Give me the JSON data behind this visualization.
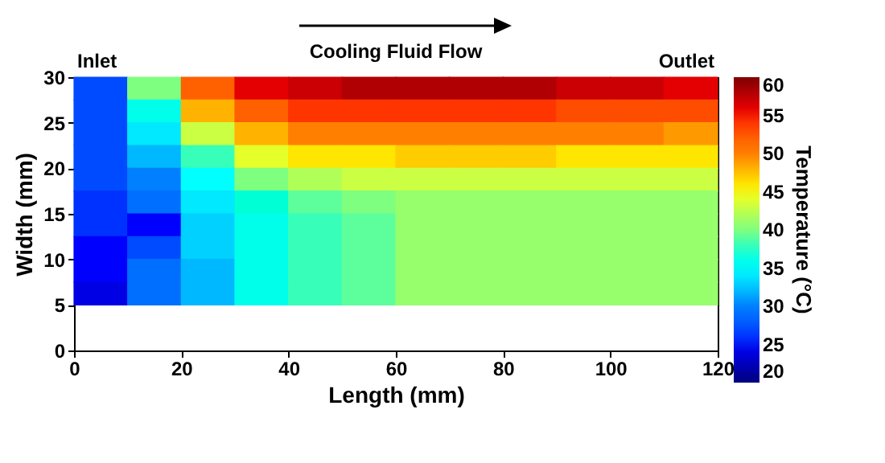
{
  "chart_data": {
    "type": "scatter",
    "marker": "square",
    "xlabel": "Length (mm)",
    "ylabel": "Width (mm)",
    "clabel": "Temperature (°C)",
    "annotations": [
      "Inlet",
      "Cooling Fluid Flow",
      "Outlet"
    ],
    "xlim": [
      0,
      120
    ],
    "ylim": [
      0,
      30
    ],
    "xticks": [
      0,
      20,
      40,
      60,
      80,
      100,
      120
    ],
    "yticks": [
      0,
      5,
      10,
      15,
      20,
      25,
      30
    ],
    "clim": [
      20,
      60
    ],
    "cticks": [
      20,
      25,
      30,
      35,
      40,
      45,
      50,
      55,
      60
    ],
    "x": [
      5,
      15,
      25,
      35,
      45,
      55,
      65,
      75,
      85,
      95,
      105,
      115,
      5,
      15,
      25,
      35,
      45,
      55,
      65,
      75,
      85,
      95,
      105,
      115,
      5,
      15,
      25,
      35,
      45,
      55,
      65,
      75,
      85,
      95,
      105,
      115,
      5,
      15,
      25,
      35,
      45,
      55,
      65,
      75,
      85,
      95,
      105,
      115,
      5,
      15,
      25,
      35,
      45,
      55,
      65,
      75,
      85,
      95,
      105,
      115,
      5,
      15,
      25,
      35,
      45,
      55,
      65,
      75,
      85,
      95,
      105,
      115,
      5,
      15,
      25,
      35,
      45,
      55,
      65,
      75,
      85,
      95,
      105,
      115,
      5,
      15,
      25,
      35,
      45,
      55,
      65,
      75,
      85,
      95,
      105,
      115,
      5,
      15,
      25,
      35,
      45,
      55,
      65,
      75,
      85,
      95,
      105,
      115,
      5,
      15,
      25,
      35,
      45,
      55,
      65,
      75,
      85,
      95,
      105,
      115
    ],
    "values": [
      28.75,
      28.75,
      28.75,
      28.75,
      28.75,
      28.75,
      28.75,
      28.75,
      28.75,
      28.75,
      28.75,
      28.75,
      26.25,
      26.25,
      26.25,
      26.25,
      26.25,
      26.25,
      26.25,
      26.25,
      26.25,
      26.25,
      26.25,
      26.25,
      23.75,
      23.75,
      23.75,
      23.75,
      23.75,
      23.75,
      23.75,
      23.75,
      23.75,
      23.75,
      23.75,
      23.75,
      21.25,
      21.25,
      21.25,
      21.25,
      21.25,
      21.25,
      21.25,
      21.25,
      21.25,
      21.25,
      21.25,
      21.25,
      18.75,
      18.75,
      18.75,
      18.75,
      18.75,
      18.75,
      18.75,
      18.75,
      18.75,
      18.75,
      18.75,
      18.75,
      16.25,
      16.25,
      16.25,
      16.25,
      16.25,
      16.25,
      16.25,
      16.25,
      16.25,
      16.25,
      16.25,
      16.25,
      13.75,
      13.75,
      13.75,
      13.75,
      13.75,
      13.75,
      13.75,
      13.75,
      13.75,
      13.75,
      13.75,
      13.75,
      11.25,
      11.25,
      11.25,
      11.25,
      11.25,
      11.25,
      11.25,
      11.25,
      11.25,
      11.25,
      11.25,
      11.25,
      8.75,
      8.75,
      8.75,
      8.75,
      8.75,
      8.75,
      8.75,
      8.75,
      8.75,
      8.75,
      8.75,
      8.75,
      6.25,
      6.25,
      6.25,
      6.25,
      6.25,
      6.25,
      6.25,
      6.25,
      6.25,
      6.25,
      6.25,
      6.25
    ],
    "cvalues": [
      27,
      40,
      52,
      56,
      57,
      58,
      58,
      58,
      58,
      57,
      57,
      56,
      27,
      36,
      48,
      52,
      54,
      54,
      54,
      54,
      54,
      53,
      53,
      53,
      27,
      34,
      43,
      48,
      50,
      50,
      50,
      50,
      50,
      50,
      50,
      49,
      27,
      32,
      38,
      44,
      46,
      46,
      47,
      47,
      47,
      46,
      46,
      46,
      27,
      30,
      35,
      40,
      42,
      43,
      43,
      43,
      43,
      43,
      43,
      43,
      26,
      29,
      34,
      37,
      39,
      40,
      41,
      41,
      41,
      41,
      41,
      41,
      26,
      25,
      33,
      36,
      38,
      39,
      41,
      41,
      41,
      41,
      41,
      41,
      25,
      27,
      33,
      36,
      38,
      39,
      41,
      41,
      41,
      41,
      41,
      41,
      25,
      29,
      32,
      36,
      38,
      39,
      41,
      41,
      41,
      41,
      41,
      41,
      24,
      29,
      32,
      36,
      38,
      39,
      41,
      41,
      41,
      41,
      41,
      41
    ]
  }
}
